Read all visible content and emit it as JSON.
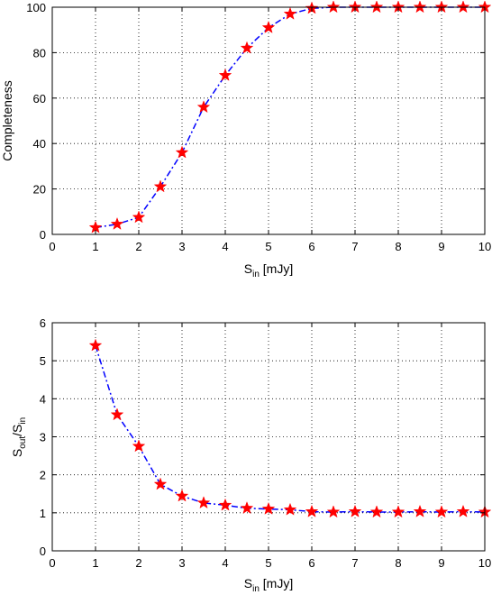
{
  "chart_data": [
    {
      "type": "line",
      "x": [
        1,
        1.5,
        2,
        2.5,
        3,
        3.5,
        4,
        4.5,
        5,
        5.5,
        6,
        6.5,
        7,
        7.5,
        8,
        8.5,
        9,
        9.5,
        10
      ],
      "series": [
        {
          "values": [
            3,
            4.5,
            7.5,
            21,
            36,
            56,
            70,
            82,
            91,
            97,
            99.5,
            100,
            100,
            100,
            100,
            100,
            100,
            100,
            100
          ]
        }
      ],
      "xlabel": {
        "main": "S",
        "sub": "in",
        "unit": " [mJy]"
      },
      "ylabel": {
        "text": "Completeness"
      },
      "xlim": [
        0,
        10
      ],
      "ylim": [
        0,
        100
      ],
      "xticks": [
        "0",
        "1",
        "2",
        "3",
        "4",
        "5",
        "6",
        "7",
        "8",
        "9",
        "10"
      ],
      "yticks": [
        "0",
        "20",
        "40",
        "60",
        "80",
        "100"
      ],
      "grid": true,
      "line_style": "dash-dot",
      "line_color": "#0000ff",
      "marker": "star",
      "marker_color": "#ff0000"
    },
    {
      "type": "line",
      "x": [
        1,
        1.5,
        2,
        2.5,
        3,
        3.5,
        4,
        4.5,
        5,
        5.5,
        6,
        6.5,
        7,
        7.5,
        8,
        8.5,
        9,
        9.5,
        10
      ],
      "series": [
        {
          "values": [
            5.4,
            3.58,
            2.75,
            1.75,
            1.44,
            1.26,
            1.2,
            1.12,
            1.1,
            1.08,
            1.03,
            1.02,
            1.03,
            1.02,
            1.02,
            1.03,
            1.02,
            1.03,
            1.02
          ]
        }
      ],
      "xlabel": {
        "main": "S",
        "sub": "in",
        "unit": " [mJy]"
      },
      "ylabel": {
        "main": "S",
        "sub": "out",
        "sep": "/S",
        "sub2": "in"
      },
      "xlim": [
        0,
        10
      ],
      "ylim": [
        0,
        6
      ],
      "xticks": [
        "0",
        "1",
        "2",
        "3",
        "4",
        "5",
        "6",
        "7",
        "8",
        "9",
        "10"
      ],
      "yticks": [
        "0",
        "1",
        "2",
        "3",
        "4",
        "5",
        "6"
      ],
      "grid": true,
      "line_style": "dash-dot",
      "line_color": "#0000ff",
      "marker": "star",
      "marker_color": "#ff0000"
    }
  ]
}
